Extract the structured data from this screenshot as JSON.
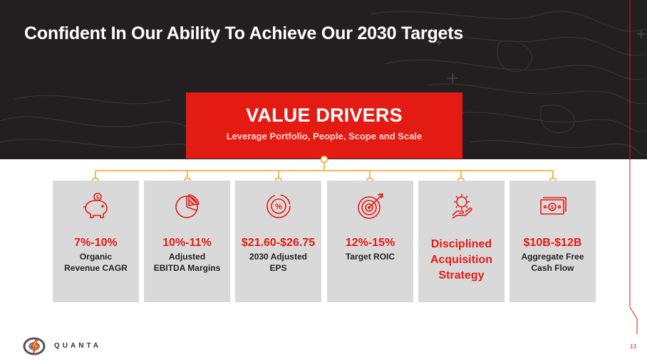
{
  "header": {
    "title": "Confident In Our Ability To Achieve Our 2030 Targets"
  },
  "value_drivers": {
    "title": "VALUE DRIVERS",
    "subtitle": "Leverage Portfolio, People, Scope and Scale"
  },
  "cards": [
    {
      "icon": "piggy-bank-icon",
      "value": "7%-10%",
      "line1": "Organic",
      "line2": "Revenue CAGR"
    },
    {
      "icon": "pie-chart-icon",
      "value": "10%-11%",
      "line1": "Adjusted",
      "line2": "EBITDA Margins"
    },
    {
      "icon": "percent-chart-icon",
      "value": "$21.60-$26.75",
      "line1": "2030 Adjusted",
      "line2": "EPS"
    },
    {
      "icon": "target-icon",
      "value": "12%-15%",
      "line1": "Target ROIC",
      "line2": ""
    },
    {
      "icon": "gear-hand-icon",
      "strategy1": "Disciplined",
      "strategy2": "Acquisition",
      "strategy3": "Strategy"
    },
    {
      "icon": "cash-icon",
      "value": "$10B-$12B",
      "line1": "Aggregate Free",
      "line2": "Cash Flow"
    }
  ],
  "footer": {
    "logo_text": "QUANTA",
    "page_number": "13"
  },
  "colors": {
    "dark": "#231f20",
    "accent_red": "#e31b13",
    "connector_orange": "#f0a21e",
    "card_gray": "#d9d9d9"
  }
}
